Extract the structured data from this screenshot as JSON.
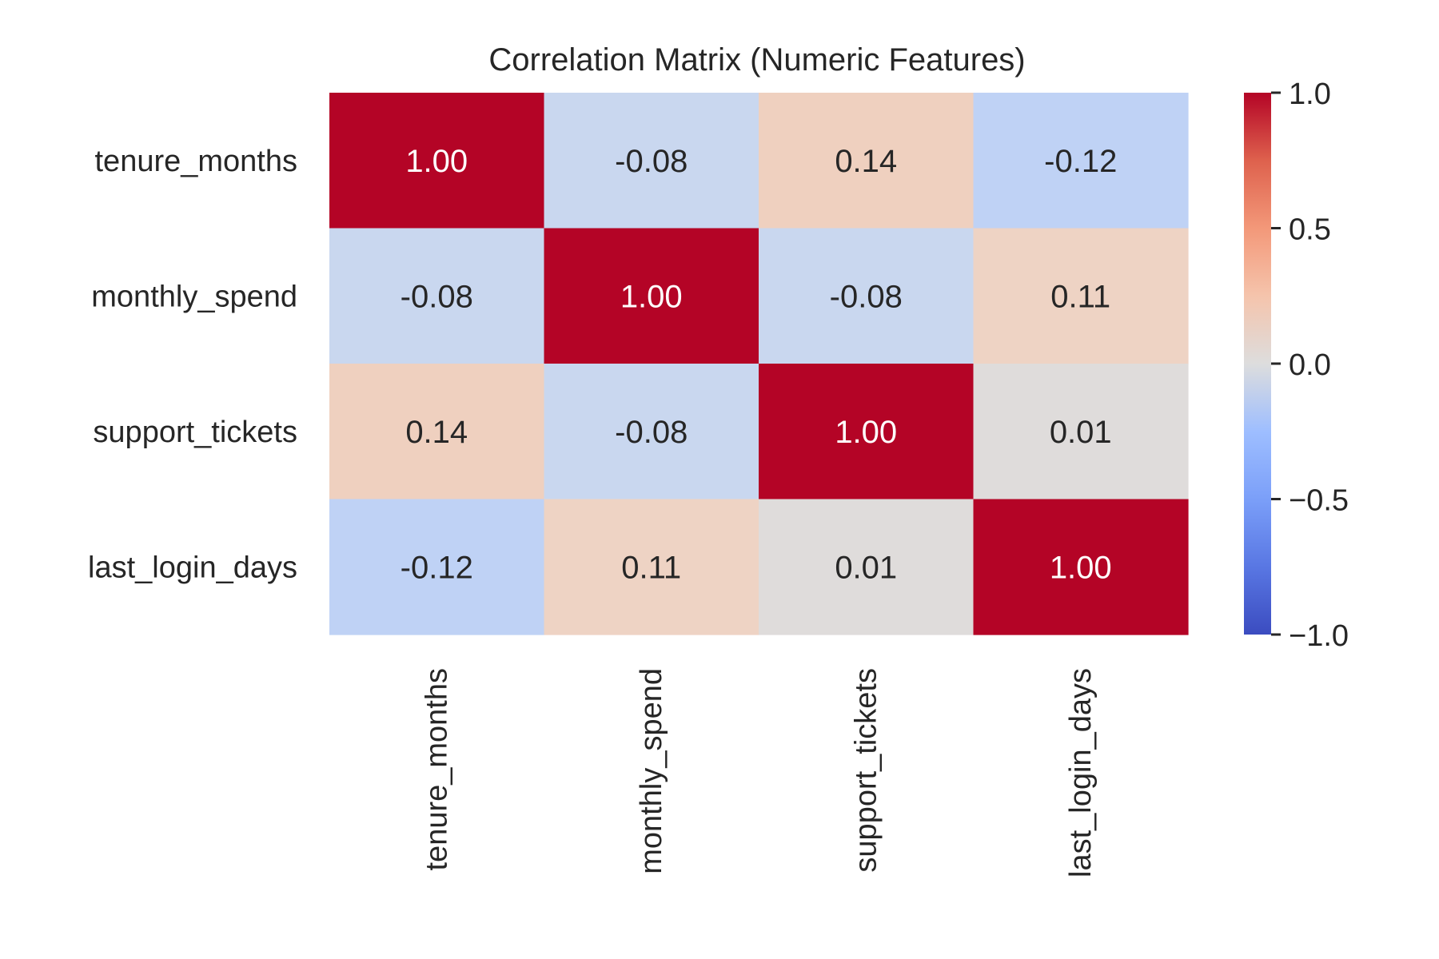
{
  "chart_data": {
    "type": "heatmap",
    "title": "Correlation Matrix (Numeric Features)",
    "xlabel": "",
    "ylabel": "",
    "row_labels": [
      "tenure_months",
      "monthly_spend",
      "support_tickets",
      "last_login_days"
    ],
    "col_labels": [
      "tenure_months",
      "monthly_spend",
      "support_tickets",
      "last_login_days"
    ],
    "values": [
      [
        1.0,
        -0.08,
        0.14,
        -0.12
      ],
      [
        -0.08,
        1.0,
        -0.08,
        0.11
      ],
      [
        0.14,
        -0.08,
        1.0,
        0.01
      ],
      [
        -0.12,
        0.11,
        0.01,
        1.0
      ]
    ],
    "cell_labels": [
      [
        "1.00",
        "-0.08",
        "0.14",
        "-0.12"
      ],
      [
        "-0.08",
        "1.00",
        "-0.08",
        "0.11"
      ],
      [
        "0.14",
        "-0.08",
        "1.00",
        "0.01"
      ],
      [
        "-0.12",
        "0.11",
        "0.01",
        "1.00"
      ]
    ],
    "colorbar": {
      "range": [
        -1.0,
        1.0
      ],
      "ticks": [
        1.0,
        0.5,
        0.0,
        -0.5,
        -1.0
      ],
      "tick_labels": [
        "1.0",
        "0.5",
        "0.0",
        "−0.5",
        "−1.0"
      ],
      "colormap": "coolwarm"
    },
    "colors": {
      "text_dark": "#262626",
      "text_light": "#ffffff"
    }
  }
}
